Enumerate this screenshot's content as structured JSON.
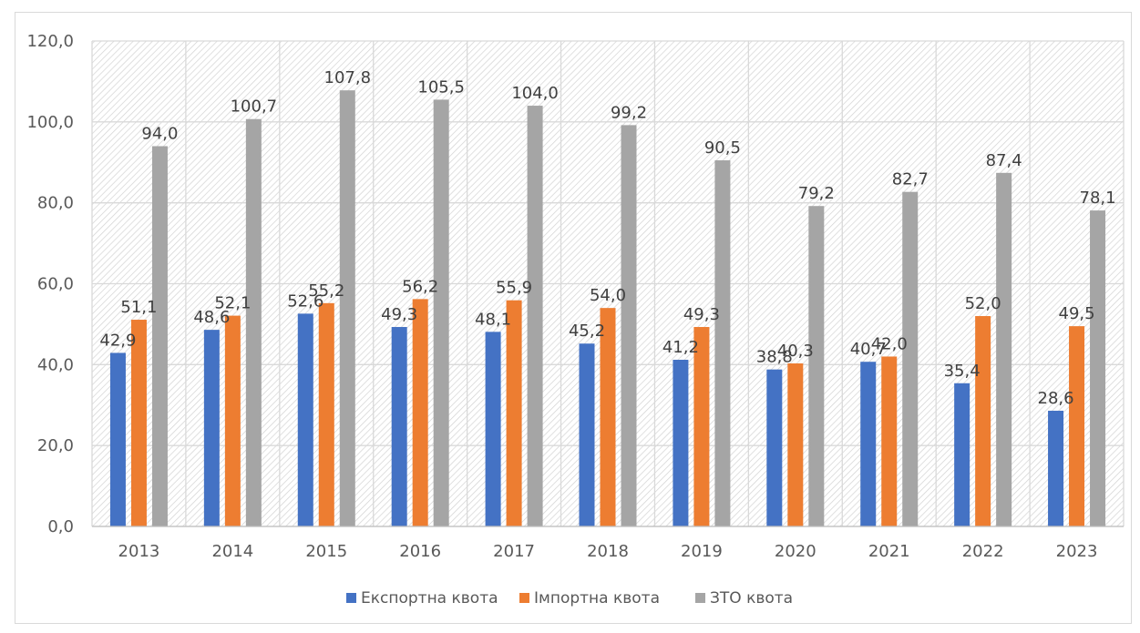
{
  "chart_data": {
    "type": "bar",
    "categories": [
      "2013",
      "2014",
      "2015",
      "2016",
      "2017",
      "2018",
      "2019",
      "2020",
      "2021",
      "2022",
      "2023"
    ],
    "series": [
      {
        "name": "Експортна квота",
        "color": "#4472C4",
        "values": [
          42.9,
          48.6,
          52.6,
          49.3,
          48.1,
          45.2,
          41.2,
          38.8,
          40.7,
          35.4,
          28.6
        ],
        "labels": [
          "42,9",
          "48,6",
          "52,6",
          "49,3",
          "48,1",
          "45,2",
          "41,2",
          "38,8",
          "40,7",
          "35,4",
          "28,6"
        ]
      },
      {
        "name": "Імпортна квота",
        "color": "#ED7D31",
        "values": [
          51.1,
          52.1,
          55.2,
          56.2,
          55.9,
          54.0,
          49.3,
          40.3,
          42.0,
          52.0,
          49.5
        ],
        "labels": [
          "51,1",
          "52,1",
          "55,2",
          "56,2",
          "55,9",
          "54,0",
          "49,3",
          "40,3",
          "42,0",
          "52,0",
          "49,5"
        ]
      },
      {
        "name": "ЗТО квота",
        "color": "#A5A5A5",
        "values": [
          94.0,
          100.7,
          107.8,
          105.5,
          104.0,
          99.2,
          90.5,
          79.2,
          82.7,
          87.4,
          78.1
        ],
        "labels": [
          "94,0",
          "100,7",
          "107,8",
          "105,5",
          "104,0",
          "99,2",
          "90,5",
          "79,2",
          "82,7",
          "87,4",
          "78,1"
        ]
      }
    ],
    "title": "",
    "xlabel": "",
    "ylabel": "",
    "ylim": [
      0,
      120
    ],
    "yticks": [
      "0,0",
      "20,0",
      "40,0",
      "60,0",
      "80,0",
      "100,0",
      "120,0"
    ],
    "grid": true,
    "plot_background": "hatched",
    "legend_position": "bottom"
  }
}
